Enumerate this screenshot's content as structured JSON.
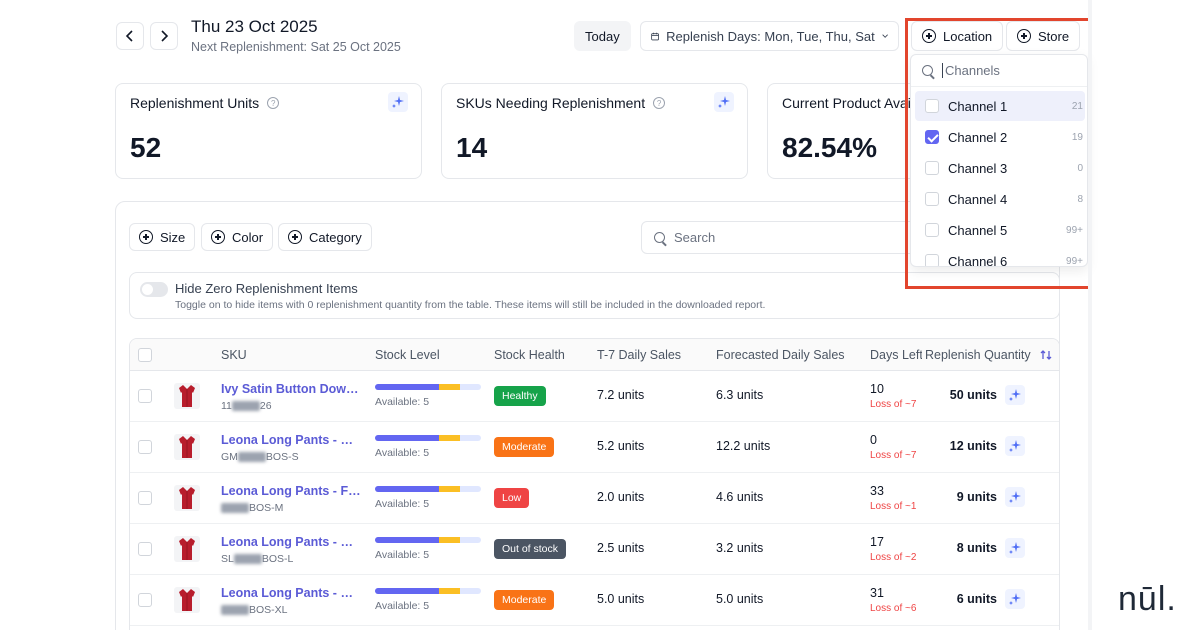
{
  "header": {
    "date": "Thu 23 Oct 2025",
    "next_replenishment": "Next Replenishment: Sat 25 Oct 2025",
    "today_label": "Today",
    "replenish_days": "Replenish Days: Mon, Tue, Thu, Sat",
    "location_label": "Location",
    "store_label": "Store"
  },
  "cards": [
    {
      "title": "Replenishment Units",
      "value": "52"
    },
    {
      "title": "SKUs Needing Replenishment",
      "value": "14"
    },
    {
      "title": "Current Product Availability",
      "value": "82.54%"
    }
  ],
  "filters": {
    "size": "Size",
    "color": "Color",
    "category": "Category",
    "search_placeholder": "Search"
  },
  "toggle": {
    "title": "Hide Zero Replenishment Items",
    "description": "Toggle on to hide items with 0 replenishment quantity from the table. These items will still be included in the downloaded report."
  },
  "table": {
    "columns": [
      "SKU",
      "Stock Level",
      "Stock Health",
      "T-7 Daily Sales",
      "Forecasted Daily Sales",
      "Days Left",
      "Replenish Quantity"
    ],
    "rows": [
      {
        "name": "Ivy Satin Button Down Top",
        "code_prefix": "11",
        "code_suffix": "26",
        "available": "Available: 5",
        "health": "Healthy",
        "health_color": "#16a34a",
        "t7": "7.2 units",
        "forecast": "6.3 units",
        "days": "10",
        "loss": "Loss of ~7",
        "qty": "50 units",
        "stock_blue": 0.6,
        "stock_yellow": 0.2
      },
      {
        "name": "Leona Long Pants - Green",
        "code_prefix": "GM",
        "code_suffix": "BOS-S",
        "available": "Available: 5",
        "health": "Moderate",
        "health_color": "#f97316",
        "t7": "5.2 units",
        "forecast": "12.2 units",
        "days": "0",
        "loss": "Loss of ~7",
        "qty": "12 units",
        "stock_blue": 0.6,
        "stock_yellow": 0.2
      },
      {
        "name": "Leona Long Pants - Flora",
        "code_prefix": "",
        "code_suffix": "BOS-M",
        "available": "Available: 5",
        "health": "Low",
        "health_color": "#ef4444",
        "t7": "2.0 units",
        "forecast": "4.6 units",
        "days": "33",
        "loss": "Loss of ~1",
        "qty": "9 units",
        "stock_blue": 0.6,
        "stock_yellow": 0.2
      },
      {
        "name": "Leona Long Pants - Sorbet",
        "code_prefix": "SL",
        "code_suffix": "BOS-L",
        "available": "Available: 5",
        "health": "Out of stock",
        "health_color": "#4b5563",
        "t7": "2.5 units",
        "forecast": "3.2 units",
        "days": "17",
        "loss": "Loss of ~2",
        "qty": "8 units",
        "stock_blue": 0.6,
        "stock_yellow": 0.2
      },
      {
        "name": "Leona Long Pants - Powder",
        "code_prefix": "",
        "code_suffix": "BOS-XL",
        "available": "Available: 5",
        "health": "Moderate",
        "health_color": "#f97316",
        "t7": "5.0 units",
        "forecast": "5.0 units",
        "days": "31",
        "loss": "Loss of ~6",
        "qty": "6 units",
        "stock_blue": 0.6,
        "stock_yellow": 0.2
      }
    ]
  },
  "dropdown": {
    "search_placeholder": "Channels",
    "items": [
      {
        "label": "Channel 1",
        "count": "21",
        "checked": false,
        "active": true
      },
      {
        "label": "Channel 2",
        "count": "19",
        "checked": true,
        "active": false
      },
      {
        "label": "Channel 3",
        "count": "0",
        "checked": false,
        "active": false
      },
      {
        "label": "Channel 4",
        "count": "8",
        "checked": false,
        "active": false
      },
      {
        "label": "Channel 5",
        "count": "99+",
        "checked": false,
        "active": false
      },
      {
        "label": "Channel 6",
        "count": "99+",
        "checked": false,
        "active": false
      }
    ]
  },
  "watermark": "nūl.",
  "colors": {
    "accent": "#6366f1",
    "highlight": "#e2452d",
    "link": "#5b5bd6"
  }
}
